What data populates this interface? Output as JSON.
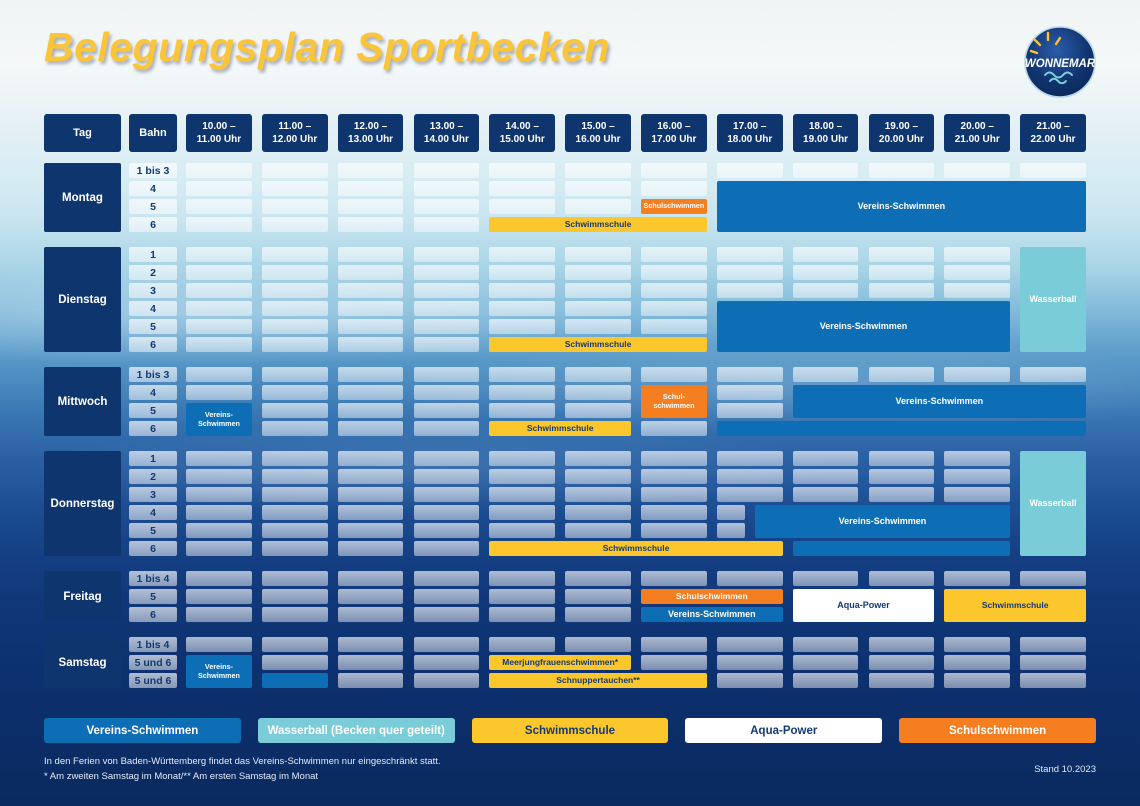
{
  "page": {
    "title": "Belegungsplan Sportbecken",
    "stand": "Stand 10.2023",
    "logo_text": "WONNEMAR",
    "notes": [
      "In den Ferien von Baden-Württemberg findet das Vereins-Schwimmen nur eingeschränkt statt.",
      "* Am zweiten Samstag im Monat/** Am ersten Samstag im Monat"
    ]
  },
  "colors": {
    "navy": "#0f356f",
    "vereins": "#0e6eb5",
    "wasserball": "#7bccd9",
    "schwimmschule": "#fcc72d",
    "schulschwimmen": "#f57e20",
    "aquapower": "#ffffff",
    "title_yellow": "#fbc53a"
  },
  "header": {
    "tag": "Tag",
    "bahn": "Bahn",
    "time_slots": [
      "10.00 –\n11.00 Uhr",
      "11.00 –\n12.00 Uhr",
      "12.00 –\n13.00 Uhr",
      "13.00 –\n14.00 Uhr",
      "14.00 –\n15.00 Uhr",
      "15.00 –\n16.00 Uhr",
      "16.00 –\n17.00 Uhr",
      "17.00 –\n18.00 Uhr",
      "18.00 –\n19.00 Uhr",
      "19.00 –\n20.00 Uhr",
      "20.00 –\n21.00 Uhr",
      "21.00 –\n22.00 Uhr"
    ]
  },
  "legend": {
    "items": [
      {
        "label": "Vereins-Schwimmen",
        "type": "vereins"
      },
      {
        "label": "Wasserball (Becken quer geteilt)",
        "type": "wasserball"
      },
      {
        "label": "Schwimmschule",
        "type": "schwimmschule"
      },
      {
        "label": "Aqua-Power",
        "type": "aquapower"
      },
      {
        "label": "Schulschwimmen",
        "type": "schulschwimmen"
      }
    ]
  },
  "schedule": {
    "day_start": 10,
    "day_end": 22,
    "days": [
      {
        "name": "Montag",
        "lanes": [
          "1 bis 3",
          "4",
          "5",
          "6"
        ],
        "empty": [
          [
            [
              10,
              22
            ]
          ],
          [
            [
              10,
              17
            ]
          ],
          [
            [
              10,
              16
            ]
          ],
          [
            [
              10,
              14
            ]
          ]
        ],
        "blocks": [
          {
            "label": "Schulschwimmen",
            "type": "schulschwimmen",
            "lane": 2,
            "lanes": 1,
            "start": 16,
            "end": 17,
            "size": "xs"
          },
          {
            "label": "Schwimmschule",
            "type": "schwimmschule",
            "lane": 3,
            "lanes": 1,
            "start": 14,
            "end": 17
          },
          {
            "label": "Vereins-Schwimmen",
            "type": "vereins",
            "lane": 1,
            "lanes": 3,
            "start": 17,
            "end": 22
          }
        ]
      },
      {
        "name": "Dienstag",
        "lanes": [
          "1",
          "2",
          "3",
          "4",
          "5",
          "6"
        ],
        "empty": [
          [
            [
              10,
              21
            ]
          ],
          [
            [
              10,
              21
            ]
          ],
          [
            [
              10,
              21
            ]
          ],
          [
            [
              10,
              17
            ]
          ],
          [
            [
              10,
              17
            ]
          ],
          [
            [
              10,
              14
            ]
          ]
        ],
        "blocks": [
          {
            "label": "Schwimmschule",
            "type": "schwimmschule",
            "lane": 5,
            "lanes": 1,
            "start": 14,
            "end": 17
          },
          {
            "label": "Vereins-Schwimmen",
            "type": "vereins",
            "lane": 3,
            "lanes": 3,
            "start": 17,
            "end": 21
          },
          {
            "label": "Wasserball",
            "type": "wasserball",
            "lane": 0,
            "lanes": 6,
            "start": 21,
            "end": 22
          }
        ]
      },
      {
        "name": "Mittwoch",
        "lanes": [
          "1 bis 3",
          "4",
          "5",
          "6"
        ],
        "empty": [
          [
            [
              10,
              22
            ]
          ],
          [
            [
              10,
              16
            ],
            [
              17,
              18
            ]
          ],
          [
            [
              11,
              16
            ],
            [
              17,
              18
            ]
          ],
          [
            [
              11,
              14
            ],
            [
              16,
              17
            ]
          ]
        ],
        "blocks": [
          {
            "label": "Vereins-\nSchwimmen",
            "type": "vereins",
            "lane": 2,
            "lanes": 2,
            "start": 10,
            "end": 11,
            "size": "xs"
          },
          {
            "label": "Schul-\nschwimmen",
            "type": "schulschwimmen",
            "lane": 1,
            "lanes": 2,
            "start": 16,
            "end": 17,
            "size": "xs"
          },
          {
            "label": "Schwimmschule",
            "type": "schwimmschule",
            "lane": 3,
            "lanes": 1,
            "start": 14,
            "end": 16
          },
          {
            "label": "Vereins-Schwimmen",
            "type": "vereins",
            "lane": 1,
            "lanes": 2,
            "start": 18,
            "end": 22
          },
          {
            "label": "",
            "type": "vereins",
            "lane": 3,
            "lanes": 1,
            "start": 17,
            "end": 22
          }
        ]
      },
      {
        "name": "Donnerstag",
        "lanes": [
          "1",
          "2",
          "3",
          "4",
          "5",
          "6"
        ],
        "empty": [
          [
            [
              10,
              21
            ]
          ],
          [
            [
              10,
              21
            ]
          ],
          [
            [
              10,
              21
            ]
          ],
          [
            [
              10,
              17.5
            ]
          ],
          [
            [
              10,
              17.5
            ]
          ],
          [
            [
              10,
              14
            ]
          ]
        ],
        "blocks": [
          {
            "label": "Schwimmschule",
            "type": "schwimmschule",
            "lane": 5,
            "lanes": 1,
            "start": 14,
            "end": 18
          },
          {
            "label": "Vereins-Schwimmen",
            "type": "vereins",
            "lane": 3,
            "lanes": 2,
            "start": 17.5,
            "end": 21
          },
          {
            "label": "",
            "type": "vereins",
            "lane": 5,
            "lanes": 1,
            "start": 18,
            "end": 21
          },
          {
            "label": "Wasserball",
            "type": "wasserball",
            "lane": 0,
            "lanes": 6,
            "start": 21,
            "end": 22
          }
        ]
      },
      {
        "name": "Freitag",
        "lanes": [
          "1 bis 4",
          "5",
          "6"
        ],
        "empty": [
          [
            [
              10,
              22
            ]
          ],
          [
            [
              10,
              16
            ]
          ],
          [
            [
              10,
              16
            ]
          ]
        ],
        "blocks": [
          {
            "label": "Schulschwimmen",
            "type": "schulschwimmen",
            "lane": 1,
            "lanes": 1,
            "start": 16,
            "end": 18
          },
          {
            "label": "Vereins-Schwimmen",
            "type": "vereins",
            "lane": 2,
            "lanes": 1,
            "start": 16,
            "end": 18
          },
          {
            "label": "Aqua-Power",
            "type": "aquapower",
            "lane": 1,
            "lanes": 2,
            "start": 18,
            "end": 20
          },
          {
            "label": "Schwimmschule",
            "type": "schwimmschule",
            "lane": 1,
            "lanes": 2,
            "start": 20,
            "end": 22
          }
        ]
      },
      {
        "name": "Samstag",
        "lanes": [
          "1 bis 4",
          "5 und 6",
          "5 und 6"
        ],
        "empty": [
          [
            [
              10,
              22
            ]
          ],
          [
            [
              11,
              14
            ],
            [
              16,
              22
            ]
          ],
          [
            [
              12,
              14
            ],
            [
              17,
              22
            ]
          ]
        ],
        "blocks": [
          {
            "label": "Vereins-\nSchwimmen",
            "type": "vereins",
            "lane": 1,
            "lanes": 2,
            "start": 10,
            "end": 11,
            "size": "xs"
          },
          {
            "label": "",
            "type": "vereins",
            "lane": 2,
            "lanes": 1,
            "start": 11,
            "end": 12
          },
          {
            "label": "Meerjungfrauenschwimmen*",
            "type": "schwimmschule",
            "lane": 1,
            "lanes": 1,
            "start": 14,
            "end": 16
          },
          {
            "label": "Schnuppertauchen**",
            "type": "schwimmschule",
            "lane": 2,
            "lanes": 1,
            "start": 14,
            "end": 17
          }
        ]
      }
    ]
  }
}
